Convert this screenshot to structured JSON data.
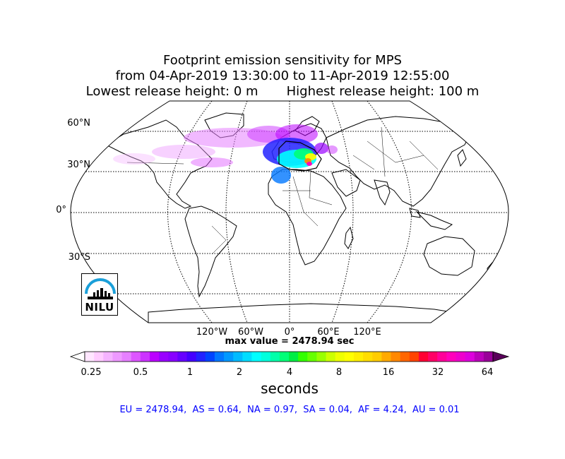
{
  "title": {
    "line1": "Footprint emission sensitivity for MPS",
    "line2": "from 04-Apr-2019 13:30:00 to 11-Apr-2019 12:55:00",
    "lowest": "Lowest release height: 0 m",
    "highest": "Highest release height: 100 m"
  },
  "map": {
    "projection": "Robinson",
    "lat_labels": [
      "60°N",
      "30°N",
      "0°",
      "30°S"
    ],
    "lon_labels": [
      "120°W",
      "60°W",
      "0°",
      "60°E",
      "120°E"
    ],
    "max_value_label": "max value = 2478.94 sec",
    "logo_text": "NILU",
    "colors": {
      "logo_arc": "#1a9fd9",
      "coast": "#000000"
    }
  },
  "colorbar": {
    "tick_labels": [
      "0.25",
      "0.5",
      "1",
      "2",
      "4",
      "8",
      "16",
      "32",
      "64"
    ],
    "units": "seconds",
    "colors": [
      "#ffe6ff",
      "#ffccff",
      "#f5b3ff",
      "#ee99ff",
      "#e680ff",
      "#dd55ff",
      "#cc33ff",
      "#bb00ff",
      "#9900ff",
      "#8800ff",
      "#6600ff",
      "#4400ff",
      "#2222ff",
      "#0044ff",
      "#0077ff",
      "#0099ff",
      "#00bbff",
      "#00ddff",
      "#00ffff",
      "#00ffdd",
      "#00ffaa",
      "#00ff77",
      "#00ee44",
      "#33ff00",
      "#66ff00",
      "#99ff00",
      "#ccff00",
      "#eeff00",
      "#ffff00",
      "#ffee00",
      "#ffdd00",
      "#ffcc00",
      "#ffaa00",
      "#ff8800",
      "#ff6600",
      "#ff4400",
      "#ff0033",
      "#ff0066",
      "#ff0099",
      "#ff00bb",
      "#ee00cc",
      "#dd00dd",
      "#bb00bb",
      "#990099"
    ]
  },
  "summary": "EU = 2478.94,  AS = 0.64,  NA = 0.97,  SA = 0.04,  AF = 4.24,  AU = 0.01"
}
